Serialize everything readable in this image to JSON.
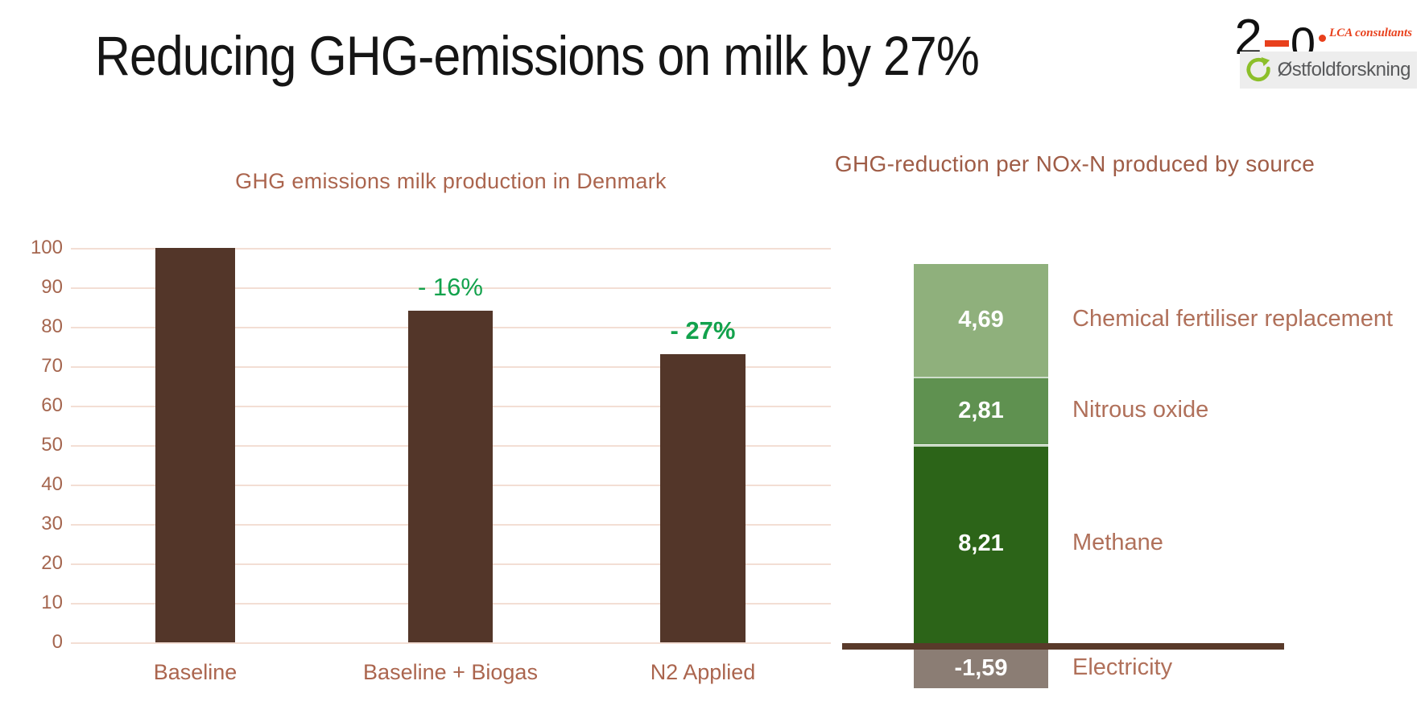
{
  "slide": {
    "title": "Reducing GHG-emissions on milk by 27%"
  },
  "logos": {
    "lca_consultants": {
      "digit_two": "2",
      "digit_zero": "0",
      "label": "LCA consultants",
      "accent_color": "#e8401c"
    },
    "ostfoldforskning": {
      "label": "Østfoldforskning",
      "icon": "circular-arrow-icon",
      "icon_color": "#8cbf2a",
      "text_color": "#58595b"
    }
  },
  "chart_data": [
    {
      "type": "bar",
      "title": "GHG emissions milk production in Denmark",
      "categories": [
        "Baseline",
        "Baseline + Biogas",
        "N2 Applied"
      ],
      "values": [
        100,
        84,
        73
      ],
      "annotations": [
        "",
        "- 16%",
        "- 27%"
      ],
      "annotation_bold": [
        false,
        false,
        true
      ],
      "annotation_color": "#13a24d",
      "bar_color": "#533629",
      "ylim": [
        0,
        100
      ],
      "yticks": [
        0,
        10,
        20,
        30,
        40,
        50,
        60,
        70,
        80,
        90,
        100
      ],
      "grid": true,
      "gridline_color": "#f3ded4",
      "tick_color": "#a5664f",
      "title_color": "#ab654e",
      "legend": "none"
    },
    {
      "type": "bar",
      "stacked": true,
      "title": "GHG-reduction per NOx-N produced by source",
      "segments": [
        {
          "label": "Chemical fertiliser replacement",
          "value": 4.69,
          "display": "4,69",
          "color": "#8fb07c"
        },
        {
          "label": "Nitrous oxide",
          "value": 2.81,
          "display": "2,81",
          "color": "#5f9150"
        },
        {
          "label": "Methane",
          "value": 8.21,
          "display": "8,21",
          "color": "#2c6418"
        },
        {
          "label": "Electricity",
          "value": -1.59,
          "display": "-1,59",
          "color": "#8b7d74"
        }
      ],
      "baseline_color": "#593a2a",
      "label_color": "#b0705a",
      "value_label_color": "#ffffff",
      "title_color": "#9f5c46",
      "legend": "labels-right"
    }
  ]
}
